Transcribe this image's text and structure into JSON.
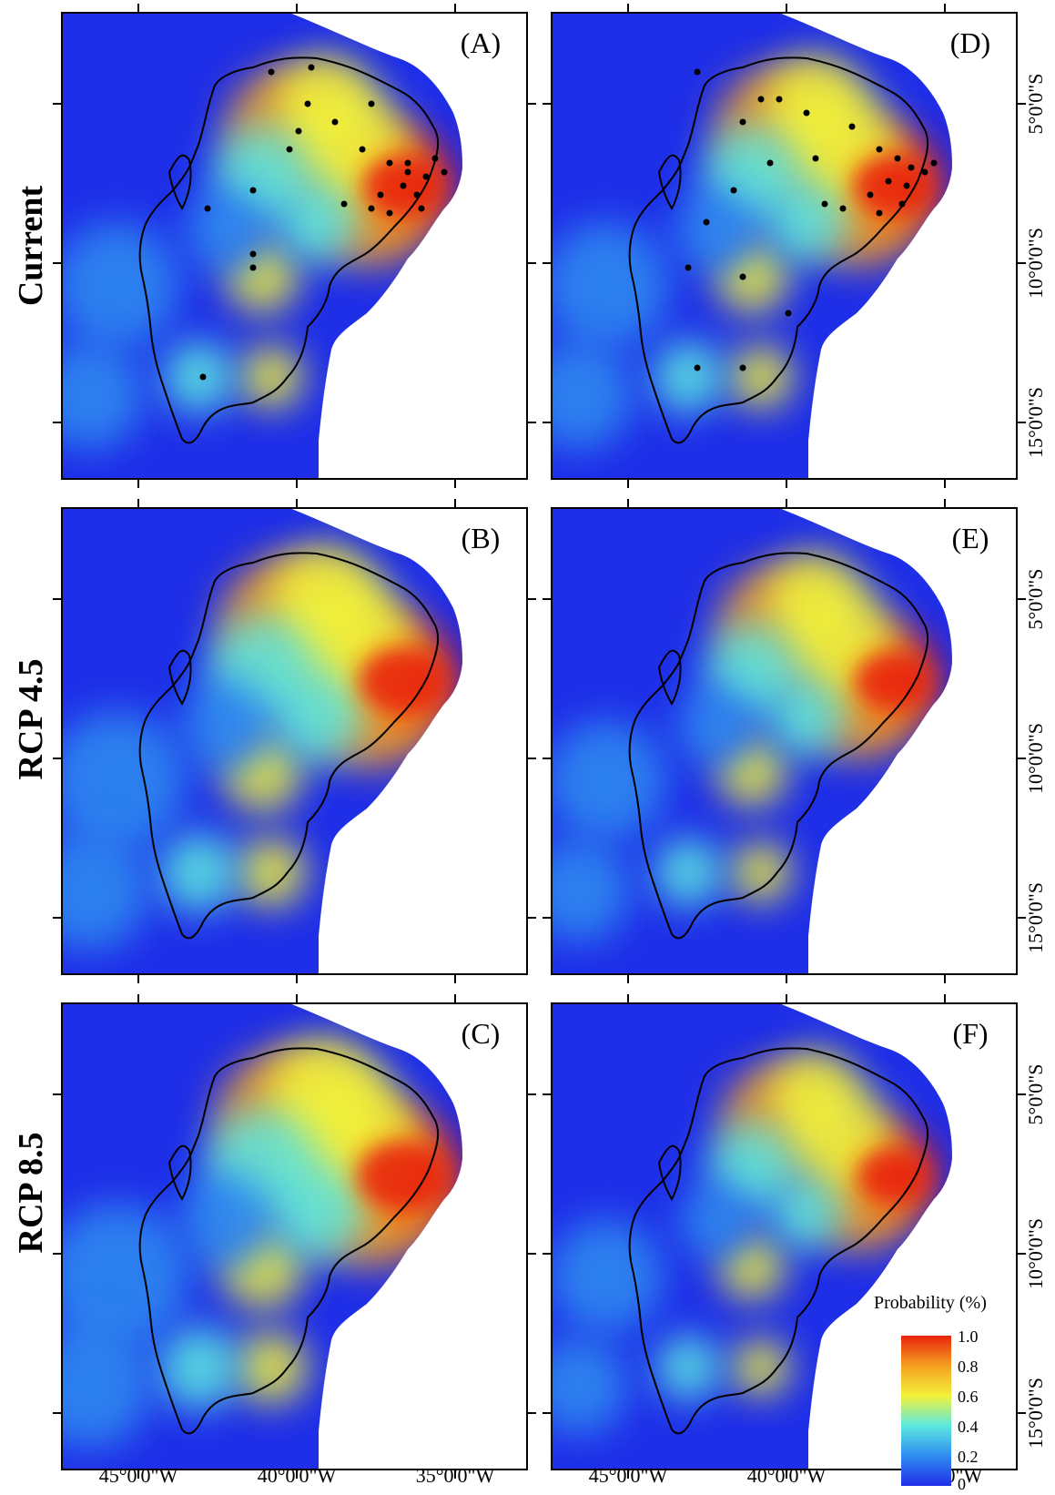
{
  "rows": [
    {
      "label": "Current"
    },
    {
      "label": "RCP 4.5"
    },
    {
      "label": "RCP 8.5"
    }
  ],
  "panels": [
    {
      "label": "(A)",
      "intensity": 1.0,
      "points": true
    },
    {
      "label": "(B)",
      "intensity": 1.1,
      "points": false
    },
    {
      "label": "(C)",
      "intensity": 1.15,
      "points": false
    },
    {
      "label": "(D)",
      "intensity": 1.0,
      "points": true
    },
    {
      "label": "(E)",
      "intensity": 0.95,
      "points": false
    },
    {
      "label": "(F)",
      "intensity": 0.9,
      "points": false
    }
  ],
  "x_ticks": [
    "45°0'0\"W",
    "40°0'0\"W",
    "35°0'0\"W"
  ],
  "y_ticks": [
    "5°0'0\"S",
    "10°0'0\"S",
    "15°0'0\"S"
  ],
  "legend": {
    "title": "Probability (%)",
    "ticks": [
      "1.0",
      "0.8",
      "0.6",
      "0.4",
      "0.2",
      "0"
    ]
  },
  "colors": {
    "low": "#1f2fe8",
    "mid_low": "#2f8cf0",
    "mid": "#5ce8e0",
    "mid_high": "#f2f23a",
    "high": "#f5a020",
    "max": "#e8240c",
    "boundary": "#000000"
  }
}
